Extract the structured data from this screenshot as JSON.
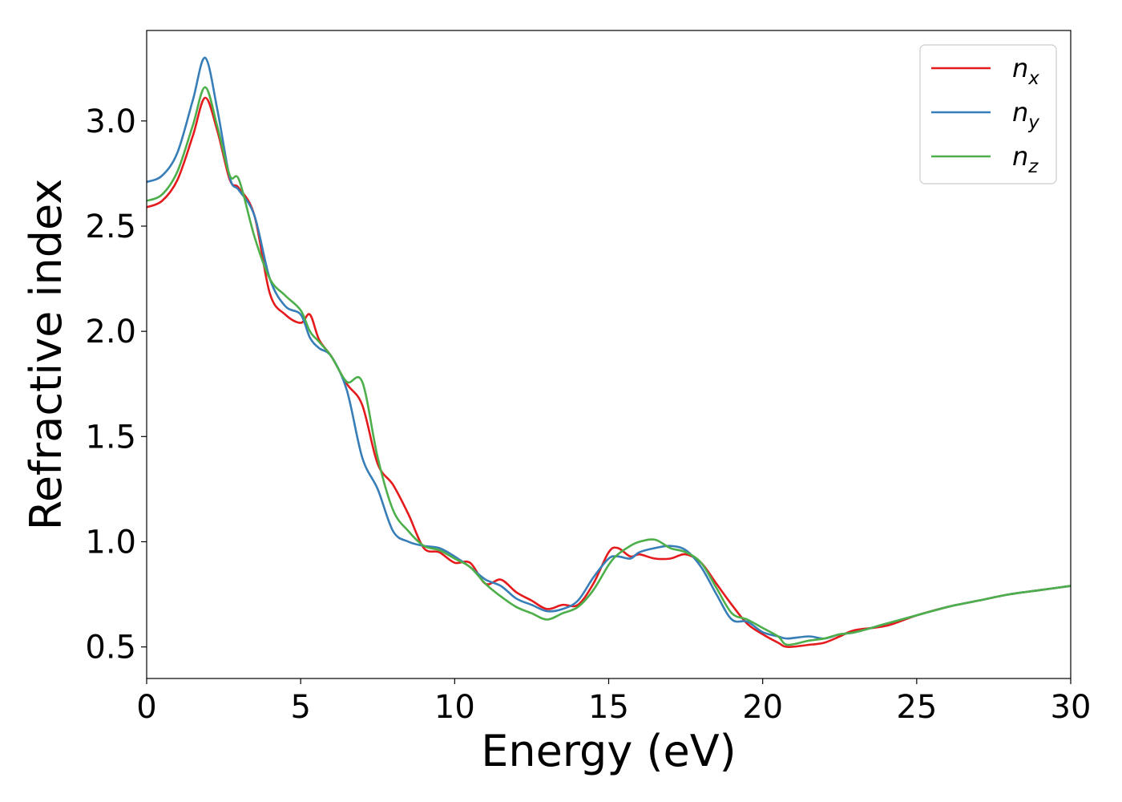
{
  "chart_data": {
    "type": "line",
    "title": "",
    "xlabel": "Energy (eV)",
    "ylabel": "Refractive index",
    "xlim": [
      0,
      30
    ],
    "ylim": [
      0.35,
      3.43
    ],
    "xticks": [
      0,
      5,
      10,
      15,
      20,
      25,
      30
    ],
    "xtick_labels": [
      "0",
      "5",
      "10",
      "15",
      "20",
      "25",
      "30"
    ],
    "yticks": [
      0.5,
      1.0,
      1.5,
      2.0,
      2.5,
      3.0
    ],
    "ytick_labels": [
      "0.5",
      "1.0",
      "1.5",
      "2.0",
      "2.5",
      "3.0"
    ],
    "grid": false,
    "legend": {
      "placement": "top-right",
      "entries": [
        {
          "base": "n",
          "sub": "x",
          "color": "#e41a1c"
        },
        {
          "base": "n",
          "sub": "y",
          "color": "#377eb8"
        },
        {
          "base": "n",
          "sub": "z",
          "color": "#4daf4a"
        }
      ]
    },
    "series": [
      {
        "name": "n_x",
        "color": "#e41a1c",
        "x": [
          0,
          0.5,
          1.0,
          1.5,
          1.9,
          2.3,
          2.7,
          3.0,
          3.5,
          4.0,
          4.5,
          5.0,
          5.3,
          5.6,
          6.0,
          6.5,
          7.0,
          7.5,
          8.0,
          8.5,
          9.0,
          9.5,
          10.0,
          10.5,
          11.0,
          11.5,
          12.0,
          12.5,
          13.0,
          13.5,
          14.0,
          14.5,
          15.0,
          15.3,
          15.7,
          16.0,
          16.5,
          17.0,
          17.5,
          18.0,
          18.5,
          19.0,
          19.5,
          20.0,
          20.5,
          20.8,
          21.5,
          22.0,
          22.5,
          23.0,
          24.0,
          25.0,
          26.0,
          27.0,
          28.0,
          29.0,
          30.0
        ],
        "y": [
          2.59,
          2.62,
          2.72,
          2.93,
          3.11,
          2.95,
          2.72,
          2.68,
          2.55,
          2.18,
          2.08,
          2.04,
          2.08,
          1.96,
          1.88,
          1.75,
          1.65,
          1.37,
          1.27,
          1.13,
          0.97,
          0.95,
          0.9,
          0.9,
          0.8,
          0.82,
          0.76,
          0.72,
          0.68,
          0.7,
          0.7,
          0.8,
          0.95,
          0.97,
          0.93,
          0.94,
          0.92,
          0.92,
          0.94,
          0.9,
          0.8,
          0.7,
          0.61,
          0.56,
          0.52,
          0.5,
          0.51,
          0.52,
          0.55,
          0.58,
          0.6,
          0.65,
          0.69,
          0.72,
          0.75,
          0.77,
          0.79
        ]
      },
      {
        "name": "n_y",
        "color": "#377eb8",
        "x": [
          0,
          0.5,
          1.0,
          1.5,
          1.9,
          2.3,
          2.7,
          3.0,
          3.5,
          4.0,
          4.5,
          5.0,
          5.3,
          5.6,
          6.0,
          6.5,
          7.0,
          7.5,
          8.0,
          8.5,
          9.0,
          9.5,
          10.0,
          10.5,
          11.0,
          11.5,
          12.0,
          12.5,
          13.0,
          13.5,
          14.0,
          14.5,
          15.0,
          15.3,
          15.7,
          16.0,
          16.5,
          17.0,
          17.5,
          18.0,
          18.5,
          19.0,
          19.5,
          20.0,
          20.5,
          20.8,
          21.5,
          22.0,
          22.5,
          23.0,
          24.0,
          25.0,
          26.0,
          27.0,
          28.0,
          29.0,
          30.0
        ],
        "y": [
          2.71,
          2.74,
          2.85,
          3.1,
          3.3,
          3.05,
          2.73,
          2.67,
          2.55,
          2.25,
          2.12,
          2.08,
          1.97,
          1.92,
          1.88,
          1.72,
          1.4,
          1.25,
          1.05,
          1.0,
          0.98,
          0.97,
          0.93,
          0.88,
          0.82,
          0.79,
          0.73,
          0.7,
          0.67,
          0.68,
          0.72,
          0.83,
          0.92,
          0.93,
          0.92,
          0.95,
          0.97,
          0.98,
          0.96,
          0.88,
          0.75,
          0.63,
          0.62,
          0.57,
          0.55,
          0.54,
          0.55,
          0.54,
          0.56,
          0.57,
          0.61,
          0.65,
          0.69,
          0.72,
          0.75,
          0.77,
          0.79
        ]
      },
      {
        "name": "n_z",
        "color": "#4daf4a",
        "x": [
          0,
          0.5,
          1.0,
          1.5,
          1.9,
          2.3,
          2.7,
          3.0,
          3.5,
          4.0,
          4.5,
          5.0,
          5.3,
          5.6,
          6.0,
          6.5,
          7.0,
          7.5,
          8.0,
          8.5,
          9.0,
          9.5,
          10.0,
          10.5,
          11.0,
          11.5,
          12.0,
          12.5,
          13.0,
          13.5,
          14.0,
          14.5,
          15.0,
          15.3,
          15.7,
          16.0,
          16.5,
          17.0,
          17.5,
          18.0,
          18.5,
          19.0,
          19.5,
          20.0,
          20.5,
          20.8,
          21.5,
          22.0,
          22.5,
          23.0,
          24.0,
          25.0,
          26.0,
          27.0,
          28.0,
          29.0,
          30.0
        ],
        "y": [
          2.62,
          2.65,
          2.76,
          2.98,
          3.16,
          2.97,
          2.74,
          2.72,
          2.45,
          2.25,
          2.17,
          2.1,
          2.0,
          1.95,
          1.88,
          1.76,
          1.76,
          1.4,
          1.15,
          1.05,
          0.98,
          0.96,
          0.92,
          0.88,
          0.8,
          0.74,
          0.69,
          0.66,
          0.63,
          0.66,
          0.69,
          0.77,
          0.89,
          0.94,
          0.98,
          1.0,
          1.01,
          0.97,
          0.95,
          0.9,
          0.78,
          0.66,
          0.63,
          0.59,
          0.55,
          0.51,
          0.53,
          0.54,
          0.56,
          0.57,
          0.61,
          0.65,
          0.69,
          0.72,
          0.75,
          0.77,
          0.79
        ]
      }
    ]
  }
}
